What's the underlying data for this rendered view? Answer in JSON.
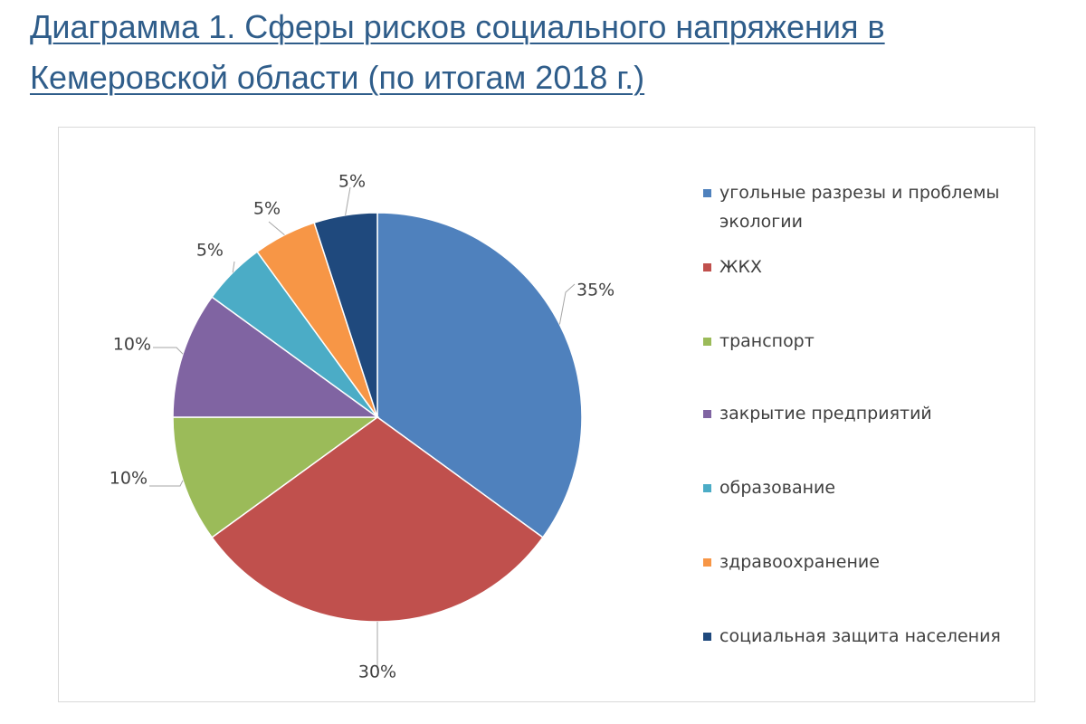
{
  "page": {
    "title": "Диаграмма 1. Сферы рисков социального напряжения в Кемеровской области (по итогам 2018 г.)"
  },
  "chart_data": {
    "type": "pie",
    "title": "",
    "categories": [
      "угольные разрезы и проблемы экологии",
      "ЖКХ",
      "транспорт",
      "закрытие предприятий",
      "образование",
      "здравоохранение",
      "социальная защита населения"
    ],
    "values": [
      35,
      30,
      10,
      10,
      5,
      5,
      5
    ],
    "data_labels": [
      "35%",
      "30%",
      "10%",
      "10%",
      "5%",
      "5%",
      "5%"
    ],
    "colors": [
      "#4f81bd",
      "#c0504d",
      "#9bbb59",
      "#8064a2",
      "#4bacc6",
      "#f79646",
      "#1f497d"
    ],
    "legend": "right",
    "start": "12 o'clock, clockwise"
  }
}
